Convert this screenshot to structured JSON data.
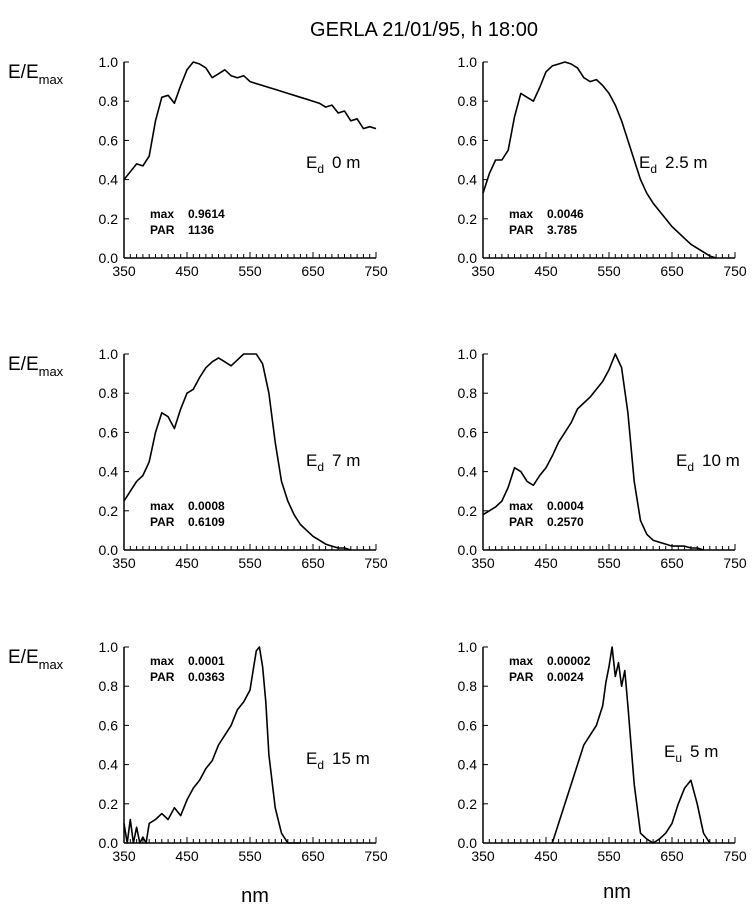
{
  "title": "GERLA 21/01/95, h 18:00",
  "ylabel": {
    "main": "E/E",
    "sub": "max"
  },
  "xlabel": "nm",
  "chart_data": [
    {
      "type": "line",
      "label": {
        "symbol": "E",
        "sub": "d",
        "depth": "0 m"
      },
      "annotation": {
        "max_label": "max",
        "max_value": "0.9614",
        "par_label": "PAR",
        "par_value": "1136"
      },
      "xlim": [
        350,
        750
      ],
      "ylim": [
        0,
        1
      ],
      "xticks": [
        "350",
        "450",
        "550",
        "650",
        "750"
      ],
      "yticks": [
        "0.0",
        "0.2",
        "0.4",
        "0.6",
        "0.8",
        "1.0"
      ],
      "series": [
        {
          "x": [
            350,
            360,
            370,
            380,
            390,
            400,
            410,
            420,
            430,
            440,
            450,
            460,
            470,
            480,
            490,
            500,
            510,
            520,
            530,
            540,
            550,
            560,
            570,
            580,
            590,
            600,
            610,
            620,
            630,
            640,
            650,
            660,
            670,
            680,
            690,
            700,
            710,
            720,
            730,
            740,
            750
          ],
          "y": [
            0.4,
            0.44,
            0.48,
            0.47,
            0.52,
            0.7,
            0.82,
            0.83,
            0.79,
            0.88,
            0.96,
            1.0,
            0.99,
            0.97,
            0.92,
            0.94,
            0.96,
            0.93,
            0.92,
            0.93,
            0.9,
            0.89,
            0.88,
            0.87,
            0.86,
            0.85,
            0.84,
            0.83,
            0.82,
            0.81,
            0.8,
            0.79,
            0.77,
            0.78,
            0.74,
            0.75,
            0.7,
            0.71,
            0.66,
            0.67,
            0.66
          ]
        }
      ]
    },
    {
      "type": "line",
      "label": {
        "symbol": "E",
        "sub": "d",
        "depth": "2.5 m"
      },
      "annotation": {
        "max_label": "max",
        "max_value": "0.0046",
        "par_label": "PAR",
        "par_value": "3.785"
      },
      "xlim": [
        350,
        750
      ],
      "ylim": [
        0,
        1
      ],
      "xticks": [
        "350",
        "450",
        "550",
        "650",
        "750"
      ],
      "yticks": [
        "0.0",
        "0.2",
        "0.4",
        "0.6",
        "0.8",
        "1.0"
      ],
      "series": [
        {
          "x": [
            350,
            360,
            370,
            380,
            390,
            400,
            410,
            420,
            430,
            440,
            450,
            460,
            470,
            480,
            490,
            500,
            510,
            520,
            530,
            540,
            550,
            560,
            570,
            580,
            590,
            600,
            610,
            620,
            630,
            640,
            650,
            660,
            670,
            680,
            690,
            700,
            710,
            720
          ],
          "y": [
            0.33,
            0.43,
            0.5,
            0.5,
            0.55,
            0.72,
            0.84,
            0.82,
            0.8,
            0.87,
            0.95,
            0.98,
            0.99,
            1.0,
            0.99,
            0.97,
            0.92,
            0.9,
            0.91,
            0.88,
            0.84,
            0.78,
            0.7,
            0.6,
            0.5,
            0.4,
            0.33,
            0.28,
            0.24,
            0.2,
            0.16,
            0.13,
            0.1,
            0.07,
            0.05,
            0.03,
            0.01,
            0.0
          ]
        }
      ]
    },
    {
      "type": "line",
      "label": {
        "symbol": "E",
        "sub": "d",
        "depth": "7 m"
      },
      "annotation": {
        "max_label": "max",
        "max_value": "0.0008",
        "par_label": "PAR",
        "par_value": "0.6109"
      },
      "xlim": [
        350,
        750
      ],
      "ylim": [
        0,
        1
      ],
      "xticks": [
        "350",
        "450",
        "550",
        "650",
        "750"
      ],
      "yticks": [
        "0.0",
        "0.2",
        "0.4",
        "0.6",
        "0.8",
        "1.0"
      ],
      "series": [
        {
          "x": [
            350,
            360,
            370,
            380,
            390,
            400,
            410,
            420,
            430,
            440,
            450,
            460,
            470,
            480,
            490,
            500,
            510,
            520,
            530,
            540,
            550,
            560,
            570,
            580,
            590,
            600,
            610,
            620,
            630,
            640,
            650,
            660,
            670,
            680,
            690,
            700,
            710
          ],
          "y": [
            0.25,
            0.3,
            0.35,
            0.38,
            0.45,
            0.6,
            0.7,
            0.68,
            0.62,
            0.72,
            0.8,
            0.82,
            0.88,
            0.93,
            0.96,
            0.98,
            0.96,
            0.94,
            0.97,
            1.0,
            1.0,
            1.0,
            0.95,
            0.8,
            0.55,
            0.35,
            0.25,
            0.18,
            0.13,
            0.1,
            0.07,
            0.05,
            0.03,
            0.02,
            0.01,
            0.01,
            0.0
          ]
        }
      ]
    },
    {
      "type": "line",
      "label": {
        "symbol": "E",
        "sub": "d",
        "depth": "10 m"
      },
      "annotation": {
        "max_label": "max",
        "max_value": "0.0004",
        "par_label": "PAR",
        "par_value": "0.2570"
      },
      "xlim": [
        350,
        750
      ],
      "ylim": [
        0,
        1
      ],
      "xticks": [
        "350",
        "450",
        "550",
        "650",
        "750"
      ],
      "yticks": [
        "0.0",
        "0.2",
        "0.4",
        "0.6",
        "0.8",
        "1.0"
      ],
      "series": [
        {
          "x": [
            350,
            360,
            370,
            380,
            390,
            400,
            410,
            420,
            430,
            440,
            450,
            460,
            470,
            480,
            490,
            500,
            510,
            520,
            530,
            540,
            550,
            560,
            570,
            580,
            590,
            600,
            610,
            620,
            630,
            640,
            650,
            660,
            670,
            680,
            690,
            700
          ],
          "y": [
            0.18,
            0.2,
            0.22,
            0.25,
            0.32,
            0.42,
            0.4,
            0.35,
            0.33,
            0.38,
            0.42,
            0.48,
            0.55,
            0.6,
            0.65,
            0.72,
            0.75,
            0.78,
            0.82,
            0.86,
            0.92,
            1.0,
            0.93,
            0.7,
            0.35,
            0.15,
            0.08,
            0.05,
            0.04,
            0.03,
            0.02,
            0.02,
            0.02,
            0.01,
            0.01,
            0.0
          ]
        }
      ]
    },
    {
      "type": "line",
      "label": {
        "symbol": "E",
        "sub": "d",
        "depth": "15 m"
      },
      "annotation": {
        "max_label": "max",
        "max_value": "0.0001",
        "par_label": "PAR",
        "par_value": "0.0363"
      },
      "xlim": [
        350,
        750
      ],
      "ylim": [
        0,
        1
      ],
      "xticks": [
        "350",
        "450",
        "550",
        "650",
        "750"
      ],
      "yticks": [
        "0.0",
        "0.2",
        "0.4",
        "0.6",
        "0.8",
        "1.0"
      ],
      "series": [
        {
          "x": [
            350,
            355,
            360,
            365,
            370,
            375,
            380,
            385,
            390,
            400,
            410,
            420,
            430,
            440,
            450,
            460,
            470,
            480,
            490,
            500,
            510,
            520,
            530,
            540,
            550,
            555,
            560,
            565,
            570,
            575,
            580,
            590,
            600,
            610,
            620,
            630
          ],
          "y": [
            0.1,
            0.0,
            0.12,
            0.0,
            0.08,
            0.0,
            0.03,
            0.0,
            0.1,
            0.12,
            0.15,
            0.12,
            0.18,
            0.14,
            0.22,
            0.28,
            0.32,
            0.38,
            0.42,
            0.5,
            0.55,
            0.6,
            0.68,
            0.72,
            0.78,
            0.88,
            0.98,
            1.0,
            0.9,
            0.72,
            0.45,
            0.18,
            0.05,
            0.0,
            0.0,
            0.0
          ]
        }
      ]
    },
    {
      "type": "line",
      "label": {
        "symbol": "E",
        "sub": "u",
        "depth": "5 m"
      },
      "annotation": {
        "max_label": "max",
        "max_value": "0.00002",
        "par_label": "PAR",
        "par_value": "0.0024"
      },
      "xlim": [
        350,
        750
      ],
      "ylim": [
        0,
        1
      ],
      "xticks": [
        "350",
        "450",
        "550",
        "650",
        "750"
      ],
      "yticks": [
        "0.0",
        "0.2",
        "0.4",
        "0.6",
        "0.8",
        "1.0"
      ],
      "series": [
        {
          "x": [
            460,
            470,
            480,
            490,
            500,
            510,
            520,
            530,
            540,
            545,
            550,
            555,
            560,
            565,
            570,
            575,
            580,
            590,
            600,
            610,
            620,
            630,
            640,
            650,
            660,
            670,
            680,
            690,
            700,
            710
          ],
          "y": [
            0.0,
            0.1,
            0.2,
            0.3,
            0.4,
            0.5,
            0.55,
            0.6,
            0.7,
            0.82,
            0.9,
            1.0,
            0.85,
            0.92,
            0.8,
            0.88,
            0.7,
            0.3,
            0.05,
            0.02,
            0.0,
            0.02,
            0.05,
            0.1,
            0.2,
            0.28,
            0.32,
            0.2,
            0.05,
            0.0
          ]
        }
      ]
    }
  ]
}
